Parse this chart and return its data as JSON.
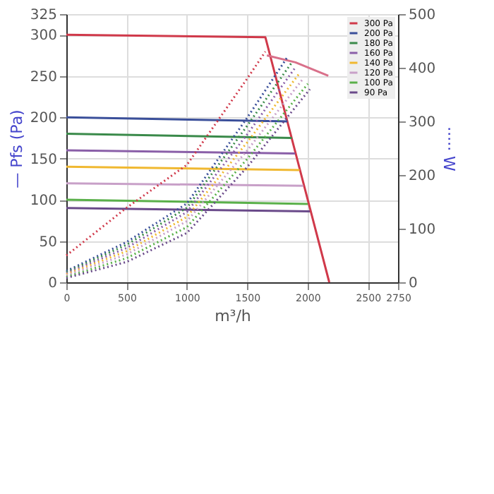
{
  "chart_data": {
    "type": "line",
    "xlabel": "m³/h",
    "ylabel": "— Pfs (Pa)",
    "y2label": "····· W",
    "xlim": [
      0,
      2750
    ],
    "xticks": [
      0,
      500,
      1000,
      1500,
      2000,
      2500,
      2750
    ],
    "ylim": [
      0,
      325
    ],
    "yticks": [
      0,
      50,
      100,
      150,
      200,
      250,
      300,
      325
    ],
    "y2lim": [
      0,
      500
    ],
    "y2ticks": [
      0,
      100,
      200,
      300,
      400,
      500
    ],
    "grid": true,
    "legend": "top right",
    "marker": "none",
    "series": [
      {
        "name": "300 Pa",
        "color": "#d0394a",
        "x": [
          0,
          1650,
          2180
        ],
        "values": [
          300,
          297,
          0
        ],
        "line_style": "solid"
      },
      {
        "name": "200 Pa",
        "color": "#3a4f9a",
        "x": [
          0,
          1833
        ],
        "values": [
          200,
          195
        ],
        "line_style": "solid"
      },
      {
        "name": "180 Pa",
        "color": "#3a8a4a",
        "x": [
          0,
          1870
        ],
        "values": [
          180,
          175
        ],
        "line_style": "solid"
      },
      {
        "name": "160 Pa",
        "color": "#8a5fa8",
        "x": [
          0,
          1897
        ],
        "values": [
          160,
          156
        ],
        "line_style": "solid"
      },
      {
        "name": "140 Pa",
        "color": "#f0b830",
        "x": [
          0,
          1934
        ],
        "values": [
          140,
          136
        ],
        "line_style": "solid"
      },
      {
        "name": "120 Pa",
        "color": "#c8a0c8",
        "x": [
          0,
          1964
        ],
        "values": [
          120,
          117
        ],
        "line_style": "solid"
      },
      {
        "name": "100 Pa",
        "color": "#5ab04a",
        "x": [
          0,
          2002
        ],
        "values": [
          100,
          95
        ],
        "line_style": "solid"
      },
      {
        "name": "90 Pa",
        "color": "#6a4a8a",
        "x": [
          0,
          2019
        ],
        "values": [
          90,
          86
        ],
        "line_style": "solid"
      },
      {
        "color": "#d0394a",
        "x": [
          0,
          500,
          1000,
          1500,
          1650
        ],
        "values": [
          50,
          139,
          219,
          380,
          430
        ],
        "axis": "y2",
        "line_style": "dotted"
      },
      {
        "color": "#3a4f9a",
        "x": [
          0,
          500,
          1000,
          1500,
          1833
        ],
        "values": [
          21,
          75,
          147,
          307,
          420
        ],
        "axis": "y2",
        "line_style": "dotted"
      },
      {
        "color": "#3a8a4a",
        "x": [
          0,
          500,
          1000,
          1500,
          1870
        ],
        "values": [
          19,
          70,
          139,
          292,
          410
        ],
        "axis": "y2",
        "line_style": "dotted"
      },
      {
        "color": "#8a5fa8",
        "x": [
          0,
          500,
          1000,
          1500,
          1897
        ],
        "values": [
          17,
          64,
          131,
          276,
          400
        ],
        "axis": "y2",
        "line_style": "dotted"
      },
      {
        "color": "#f0b830",
        "x": [
          0,
          500,
          1000,
          1500,
          1934
        ],
        "values": [
          15,
          58,
          122,
          261,
          390
        ],
        "axis": "y2",
        "line_style": "dotted"
      },
      {
        "color": "#c8a0c8",
        "x": [
          0,
          500,
          1000,
          1500,
          1964
        ],
        "values": [
          13,
          52,
          114,
          246,
          380
        ],
        "axis": "y2",
        "line_style": "dotted"
      },
      {
        "color": "#5ab04a",
        "x": [
          0,
          500,
          1000,
          1500,
          2002
        ],
        "values": [
          10,
          45,
          103,
          230,
          370
        ],
        "axis": "y2",
        "line_style": "dotted"
      },
      {
        "color": "#6a4a8a",
        "x": [
          0,
          500,
          1000,
          1500,
          2019
        ],
        "values": [
          8,
          38,
          92,
          215,
          360
        ],
        "axis": "y2",
        "line_style": "dotted"
      },
      {
        "color": "#d9708a",
        "x": [
          1663,
          1900,
          2172
        ],
        "values": [
          423,
          410,
          385
        ],
        "axis": "y2",
        "line_style": "solid"
      }
    ]
  }
}
